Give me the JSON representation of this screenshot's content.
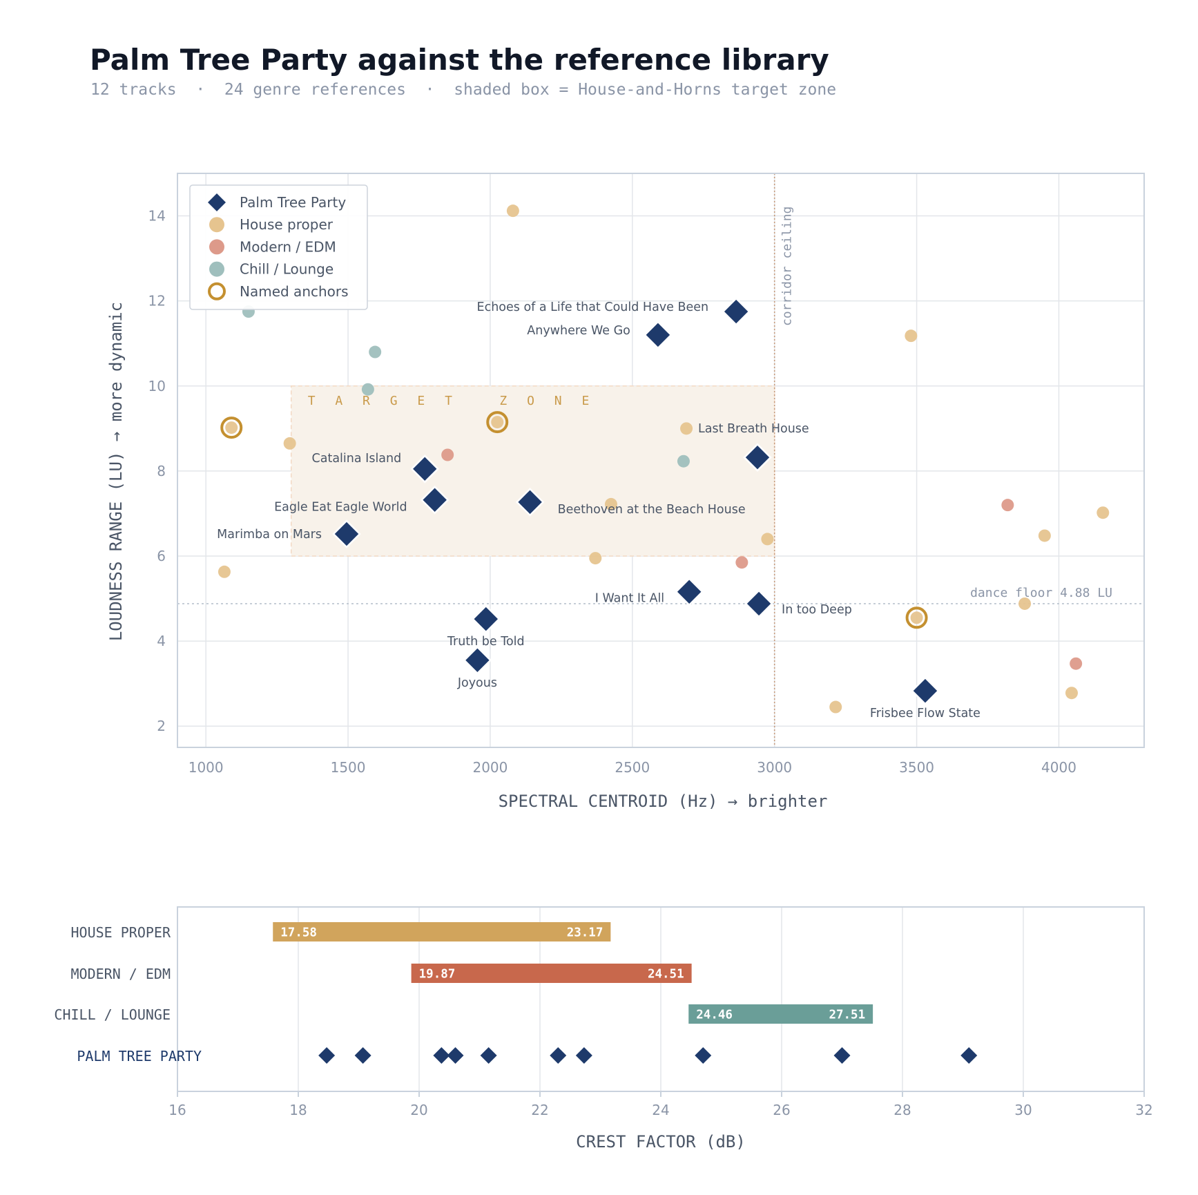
{
  "title": "Palm Tree Party against the reference library",
  "subtitle": "12 tracks  ·  24 genre references  ·  shaded box = House-and-Horns target zone",
  "colors": {
    "palm_tree_party": "#1e3a6b",
    "house_proper": "#e6c48f",
    "modern_edm": "#dd9a8a",
    "chill_lounge": "#9fbfbd",
    "named_anchor": "#c49030",
    "target_zone_fill": "#f8f2ea",
    "target_zone_label": "#c99a4a",
    "corridor_line": "#c79a7a",
    "house_bar": "#d1a45c",
    "edm_bar": "#c8684c",
    "chill_bar": "#6a9e98"
  },
  "chart_data": [
    {
      "type": "scatter",
      "xlabel": "SPECTRAL CENTROID (Hz)  →  brighter",
      "ylabel": "LOUDNESS RANGE (LU)  →  more dynamic",
      "xlim": [
        900,
        4300
      ],
      "ylim": [
        1.5,
        15
      ],
      "x_ticks": [
        1000,
        1500,
        2000,
        2500,
        3000,
        3500,
        4000
      ],
      "y_ticks": [
        2,
        4,
        6,
        8,
        10,
        12,
        14
      ],
      "grid": true,
      "legend_position": "top-left",
      "legend": [
        "Palm Tree Party",
        "House proper",
        "Modern / EDM",
        "Chill / Lounge",
        "Named anchors"
      ],
      "target_zone": {
        "label": "TARGET ZONE",
        "x": [
          1300,
          3000
        ],
        "y": [
          6,
          10
        ]
      },
      "corridor_ceiling": {
        "label": "corridor ceiling",
        "x": 3000
      },
      "dance_floor": {
        "label": "dance floor 4.88 LU",
        "y": 4.88
      },
      "series": [
        {
          "name": "Palm Tree Party",
          "points": [
            {
              "label": "Echoes of a Life that Could Have Been",
              "x": 2865,
              "y": 11.75
            },
            {
              "label": "Anywhere We Go",
              "x": 2590,
              "y": 11.2
            },
            {
              "label": "Last Breath House",
              "x": 2940,
              "y": 8.32
            },
            {
              "label": "Catalina Island",
              "x": 1770,
              "y": 8.05
            },
            {
              "label": "Eagle Eat Eagle World",
              "x": 1805,
              "y": 7.32
            },
            {
              "label": "Beethoven at the Beach House",
              "x": 2140,
              "y": 7.27
            },
            {
              "label": "Marimba on Mars",
              "x": 1495,
              "y": 6.52
            },
            {
              "label": "I Want It All",
              "x": 2700,
              "y": 5.16
            },
            {
              "label": "In too Deep",
              "x": 2945,
              "y": 4.88
            },
            {
              "label": "Truth be Told",
              "x": 1985,
              "y": 4.52
            },
            {
              "label": "Joyous",
              "x": 1955,
              "y": 3.55
            },
            {
              "label": "Frisbee Flow State",
              "x": 3530,
              "y": 2.83
            }
          ]
        },
        {
          "name": "House proper",
          "points": [
            {
              "x": 2080,
              "y": 14.12
            },
            {
              "x": 3480,
              "y": 11.18
            },
            {
              "x": 1090,
              "y": 9.02
            },
            {
              "x": 2025,
              "y": 9.15
            },
            {
              "x": 2690,
              "y": 9.0
            },
            {
              "x": 1295,
              "y": 8.65
            },
            {
              "x": 2425,
              "y": 7.22
            },
            {
              "x": 2975,
              "y": 6.4
            },
            {
              "x": 2370,
              "y": 5.95
            },
            {
              "x": 1065,
              "y": 5.63
            },
            {
              "x": 3500,
              "y": 4.55
            },
            {
              "x": 3880,
              "y": 4.88
            },
            {
              "x": 3950,
              "y": 6.48
            },
            {
              "x": 4155,
              "y": 7.02
            },
            {
              "x": 3215,
              "y": 2.45
            },
            {
              "x": 4045,
              "y": 2.78
            }
          ]
        },
        {
          "name": "Modern / EDM",
          "points": [
            {
              "x": 1850,
              "y": 8.38
            },
            {
              "x": 2885,
              "y": 5.85
            },
            {
              "x": 3820,
              "y": 7.2
            },
            {
              "x": 4060,
              "y": 3.47
            }
          ]
        },
        {
          "name": "Chill / Lounge",
          "points": [
            {
              "x": 1150,
              "y": 11.75
            },
            {
              "x": 1595,
              "y": 10.8
            },
            {
              "x": 1570,
              "y": 9.92
            },
            {
              "x": 2680,
              "y": 8.23
            }
          ]
        },
        {
          "name": "Named anchors",
          "points": [
            {
              "x": 1090,
              "y": 9.02
            },
            {
              "x": 2025,
              "y": 9.15
            },
            {
              "x": 3500,
              "y": 4.55
            }
          ]
        }
      ]
    },
    {
      "type": "range",
      "xlabel": "CREST FACTOR (dB)",
      "xlim": [
        16,
        32
      ],
      "x_ticks": [
        16,
        18,
        20,
        22,
        24,
        26,
        28,
        30,
        32
      ],
      "grid": true,
      "ranges": [
        {
          "name": "HOUSE PROPER",
          "low": 17.58,
          "high": 23.17
        },
        {
          "name": "MODERN / EDM",
          "low": 19.87,
          "high": 24.51
        },
        {
          "name": "CHILL / LOUNGE",
          "low": 24.46,
          "high": 27.51
        }
      ],
      "tracks": {
        "name": "PALM TREE PARTY",
        "values": [
          18.47,
          19.07,
          20.37,
          20.6,
          21.15,
          22.3,
          22.73,
          24.7,
          27.0,
          29.1
        ]
      }
    }
  ]
}
